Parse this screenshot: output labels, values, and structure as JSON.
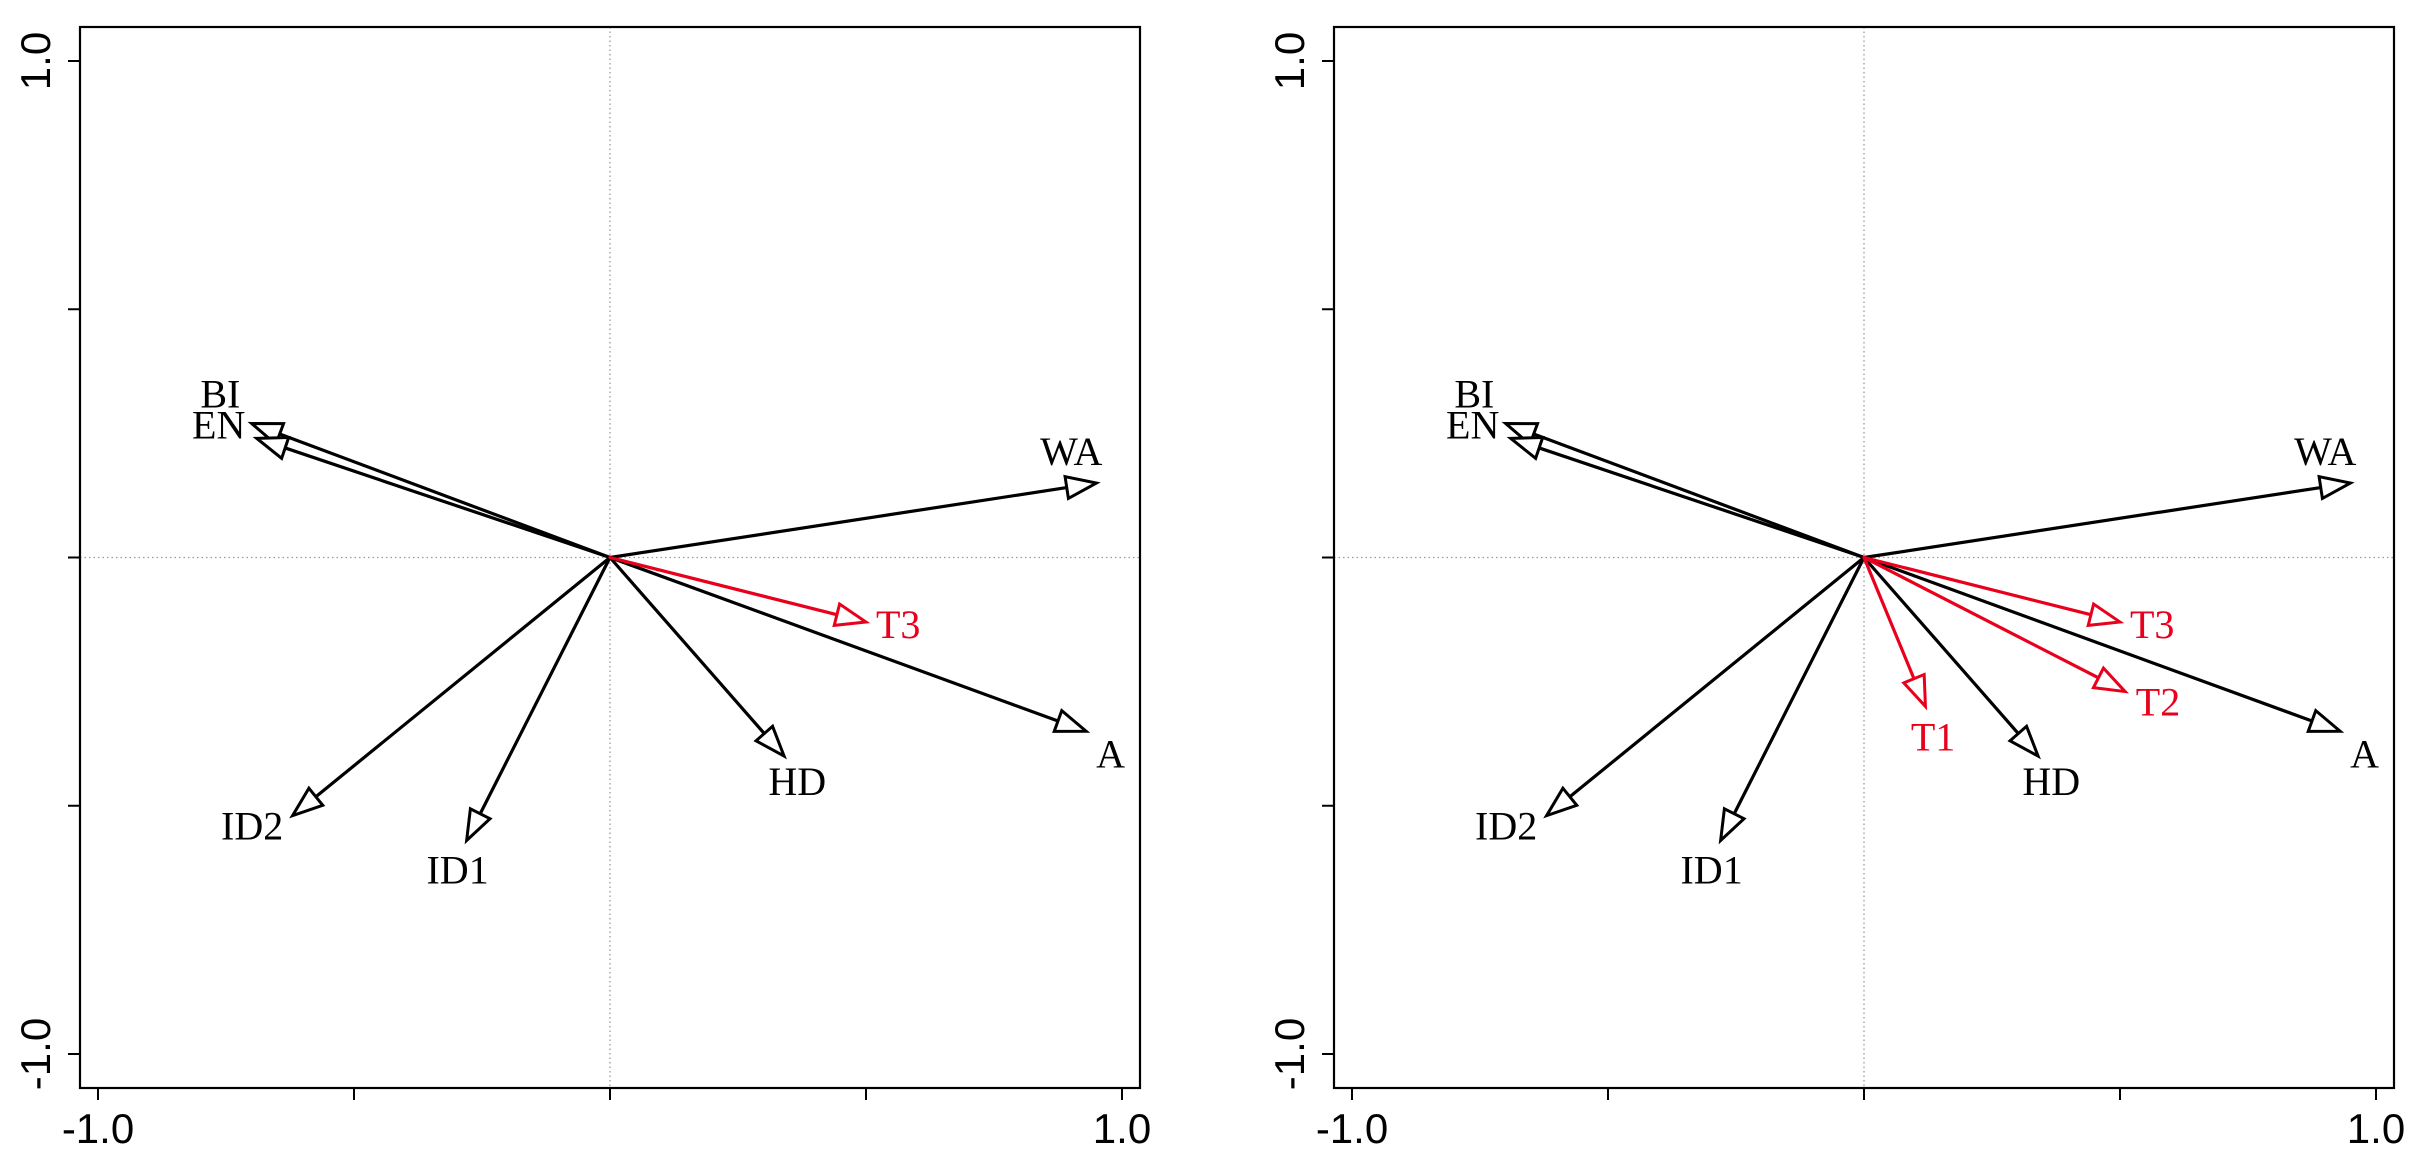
{
  "chart_data": [
    {
      "type": "biplot",
      "xlim": [
        -1.0,
        1.0
      ],
      "ylim": [
        -1.0,
        1.0
      ],
      "x_tick_labels": [
        "-1.0",
        "1.0"
      ],
      "y_tick_labels": [
        "1.0",
        "-1.0"
      ],
      "reference_lines": "dotted at x=0 and y=0",
      "vectors": [
        {
          "label": "BI",
          "x": -0.7,
          "y": 0.27,
          "color": "#000000"
        },
        {
          "label": "EN",
          "x": -0.69,
          "y": 0.24,
          "color": "#000000"
        },
        {
          "label": "WA",
          "x": 0.95,
          "y": 0.15,
          "color": "#000000"
        },
        {
          "label": "A",
          "x": 0.93,
          "y": -0.35,
          "color": "#000000"
        },
        {
          "label": "HD",
          "x": 0.34,
          "y": -0.4,
          "color": "#000000"
        },
        {
          "label": "ID1",
          "x": -0.28,
          "y": -0.57,
          "color": "#000000"
        },
        {
          "label": "ID2",
          "x": -0.62,
          "y": -0.52,
          "color": "#000000"
        },
        {
          "label": "T3",
          "x": 0.5,
          "y": -0.13,
          "color": "#e8001c"
        }
      ]
    },
    {
      "type": "biplot",
      "xlim": [
        -1.0,
        1.0
      ],
      "ylim": [
        -1.0,
        1.0
      ],
      "x_tick_labels": [
        "-1.0",
        "1.0"
      ],
      "y_tick_labels": [
        "1.0",
        "-1.0"
      ],
      "reference_lines": "dotted at x=0 and y=0",
      "vectors": [
        {
          "label": "BI",
          "x": -0.7,
          "y": 0.27,
          "color": "#000000"
        },
        {
          "label": "EN",
          "x": -0.69,
          "y": 0.24,
          "color": "#000000"
        },
        {
          "label": "WA",
          "x": 0.95,
          "y": 0.15,
          "color": "#000000"
        },
        {
          "label": "A",
          "x": 0.93,
          "y": -0.35,
          "color": "#000000"
        },
        {
          "label": "HD",
          "x": 0.34,
          "y": -0.4,
          "color": "#000000"
        },
        {
          "label": "ID1",
          "x": -0.28,
          "y": -0.57,
          "color": "#000000"
        },
        {
          "label": "ID2",
          "x": -0.62,
          "y": -0.52,
          "color": "#000000"
        },
        {
          "label": "T3",
          "x": 0.5,
          "y": -0.13,
          "color": "#e8001c"
        },
        {
          "label": "T2",
          "x": 0.51,
          "y": -0.27,
          "color": "#e8001c"
        },
        {
          "label": "T1",
          "x": 0.12,
          "y": -0.3,
          "color": "#e8001c"
        }
      ]
    }
  ]
}
